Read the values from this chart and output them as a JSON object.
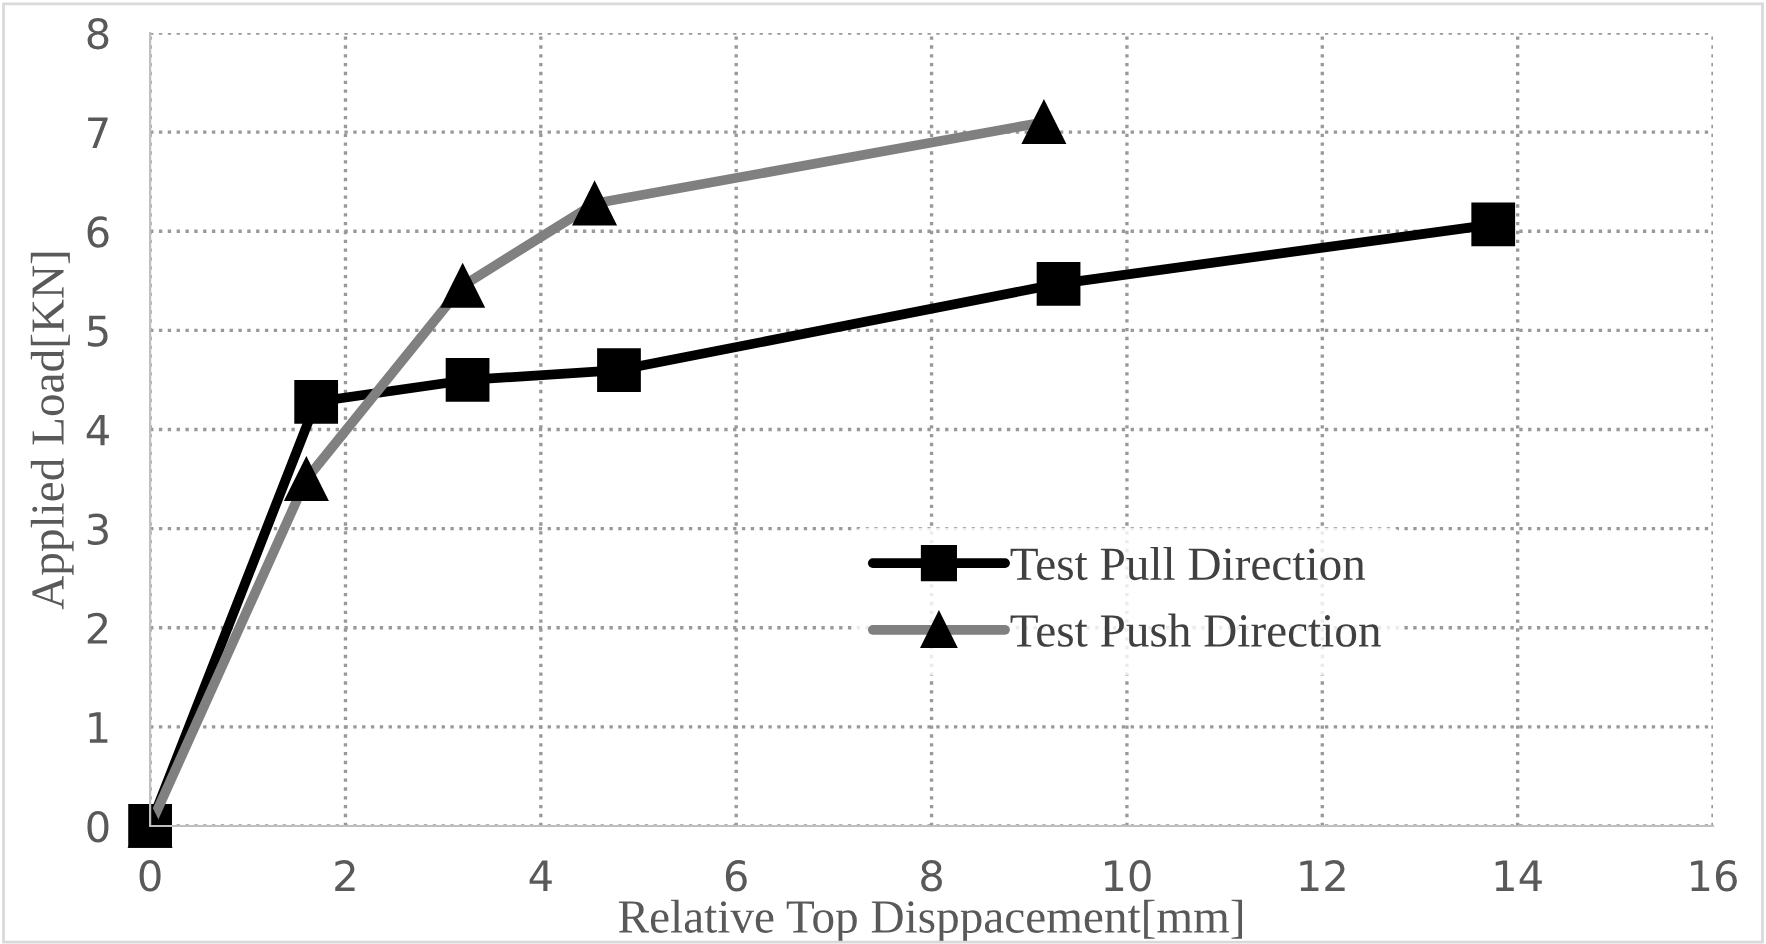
{
  "chart_data": {
    "type": "line",
    "xlabel": "Relative Top Disppacement[mm]",
    "ylabel": "Applied Load[KN]",
    "xlim": [
      0,
      16
    ],
    "xticks": [
      0,
      2,
      4,
      6,
      8,
      10,
      12,
      14,
      16
    ],
    "ylim": [
      0,
      8
    ],
    "yticks": [
      0,
      1,
      2,
      3,
      4,
      5,
      6,
      7,
      8
    ],
    "grid": true,
    "legend": "bottom right",
    "series": [
      {
        "name": "Test Pull Direction",
        "color": "#000000",
        "marker": "square",
        "x": [
          0,
          1.7,
          3.25,
          4.8,
          9.3,
          13.75
        ],
        "values": [
          0,
          4.28,
          4.5,
          4.6,
          5.47,
          6.07
        ]
      },
      {
        "name": "Test Push Direction",
        "color": "#808080",
        "marker": "triangle",
        "x": [
          0,
          1.6,
          3.2,
          4.55,
          9.15
        ],
        "values": [
          0,
          3.5,
          5.45,
          6.28,
          7.1
        ]
      }
    ]
  }
}
